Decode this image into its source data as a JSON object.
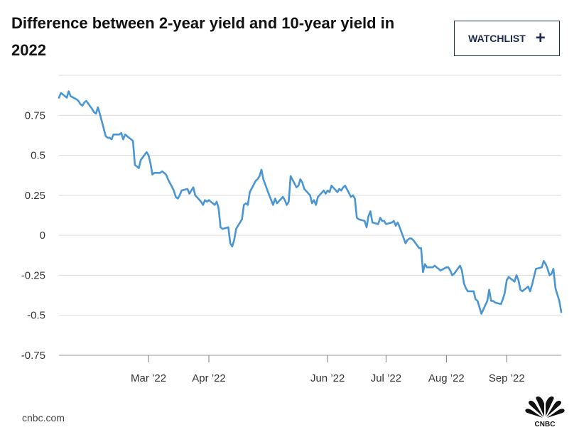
{
  "header": {
    "title": "Difference between 2-year yield and 10-year yield in 2022",
    "watchlist_label": "WATCHLIST",
    "watchlist_icon": "plus-icon"
  },
  "footer": {
    "source": "cnbc.com",
    "logo_text": "CNBC",
    "logo_icon": "peacock-logo"
  },
  "colors": {
    "line": "#4a96d4",
    "grid": "#d9d9d9",
    "button": "#1b2a4e"
  },
  "chart_data": {
    "type": "line",
    "title": "Difference between 2-year yield and 10-year yield in 2022",
    "xlabel": "",
    "ylabel": "",
    "ylim": [
      -0.75,
      1.0
    ],
    "yticks": [
      {
        "value": 0.75,
        "label": "0.75"
      },
      {
        "value": 0.5,
        "label": "0.5"
      },
      {
        "value": 0.25,
        "label": "0.25"
      },
      {
        "value": 0,
        "label": "0"
      },
      {
        "value": -0.25,
        "label": "-0.25"
      },
      {
        "value": -0.5,
        "label": "-0.5"
      },
      {
        "value": -0.75,
        "label": "-0.75"
      }
    ],
    "xlim": [
      "2022-01-14",
      "2022-09-29"
    ],
    "xticks": [
      {
        "date": "2022-03-01",
        "label": "Mar ’22"
      },
      {
        "date": "2022-04-01",
        "label": "Apr ’22"
      },
      {
        "date": "2022-06-01",
        "label": "Jun ’22"
      },
      {
        "date": "2022-07-01",
        "label": "Jul ’22"
      },
      {
        "date": "2022-08-01",
        "label": "Aug ’22"
      },
      {
        "date": "2022-09-01",
        "label": "Sep ’22"
      }
    ],
    "grid": true,
    "series": [
      {
        "points": [
          [
            "2022-01-14",
            0.86
          ],
          [
            "2022-01-15",
            0.89
          ],
          [
            "2022-01-18",
            0.86
          ],
          [
            "2022-01-19",
            0.9
          ],
          [
            "2022-01-20",
            0.87
          ],
          [
            "2022-01-23",
            0.85
          ],
          [
            "2022-01-24",
            0.84
          ],
          [
            "2022-01-25",
            0.82
          ],
          [
            "2022-01-26",
            0.81
          ],
          [
            "2022-01-27",
            0.83
          ],
          [
            "2022-01-28",
            0.84
          ],
          [
            "2022-01-31",
            0.79
          ],
          [
            "2022-02-01",
            0.77
          ],
          [
            "2022-02-02",
            0.76
          ],
          [
            "2022-02-03",
            0.8
          ],
          [
            "2022-02-04",
            0.76
          ],
          [
            "2022-02-07",
            0.62
          ],
          [
            "2022-02-08",
            0.61
          ],
          [
            "2022-02-09",
            0.61
          ],
          [
            "2022-02-10",
            0.6
          ],
          [
            "2022-02-11",
            0.63
          ],
          [
            "2022-02-14",
            0.63
          ],
          [
            "2022-02-15",
            0.64
          ],
          [
            "2022-02-16",
            0.6
          ],
          [
            "2022-02-17",
            0.63
          ],
          [
            "2022-02-18",
            0.62
          ],
          [
            "2022-02-21",
            0.59
          ],
          [
            "2022-02-22",
            0.44
          ],
          [
            "2022-02-23",
            0.43
          ],
          [
            "2022-02-24",
            0.42
          ],
          [
            "2022-02-25",
            0.47
          ],
          [
            "2022-02-28",
            0.52
          ],
          [
            "2022-03-01",
            0.5
          ],
          [
            "2022-03-02",
            0.45
          ],
          [
            "2022-03-03",
            0.38
          ],
          [
            "2022-03-04",
            0.39
          ],
          [
            "2022-03-07",
            0.39
          ],
          [
            "2022-03-08",
            0.4
          ],
          [
            "2022-03-09",
            0.39
          ],
          [
            "2022-03-10",
            0.38
          ],
          [
            "2022-03-11",
            0.35
          ],
          [
            "2022-03-14",
            0.28
          ],
          [
            "2022-03-15",
            0.24
          ],
          [
            "2022-03-16",
            0.23
          ],
          [
            "2022-03-17",
            0.25
          ],
          [
            "2022-03-18",
            0.28
          ],
          [
            "2022-03-21",
            0.29
          ],
          [
            "2022-03-22",
            0.26
          ],
          [
            "2022-03-23",
            0.28
          ],
          [
            "2022-03-24",
            0.3
          ],
          [
            "2022-03-25",
            0.25
          ],
          [
            "2022-03-28",
            0.21
          ],
          [
            "2022-03-29",
            0.19
          ],
          [
            "2022-03-30",
            0.22
          ],
          [
            "2022-03-31",
            0.21
          ],
          [
            "2022-04-01",
            0.22
          ],
          [
            "2022-04-04",
            0.19
          ],
          [
            "2022-04-05",
            0.21
          ],
          [
            "2022-04-06",
            0.17
          ],
          [
            "2022-04-07",
            0.05
          ],
          [
            "2022-04-08",
            0.04
          ],
          [
            "2022-04-11",
            0.05
          ],
          [
            "2022-04-12",
            -0.05
          ],
          [
            "2022-04-13",
            -0.07
          ],
          [
            "2022-04-14",
            -0.03
          ],
          [
            "2022-04-15",
            0.04
          ],
          [
            "2022-04-18",
            0.1
          ],
          [
            "2022-04-19",
            0.19
          ],
          [
            "2022-04-20",
            0.2
          ],
          [
            "2022-04-21",
            0.19
          ],
          [
            "2022-04-22",
            0.27
          ],
          [
            "2022-04-25",
            0.34
          ],
          [
            "2022-04-26",
            0.35
          ],
          [
            "2022-04-27",
            0.37
          ],
          [
            "2022-04-28",
            0.41
          ],
          [
            "2022-04-29",
            0.35
          ],
          [
            "2022-05-02",
            0.25
          ],
          [
            "2022-05-03",
            0.22
          ],
          [
            "2022-05-04",
            0.19
          ],
          [
            "2022-05-05",
            0.23
          ],
          [
            "2022-05-06",
            0.2
          ],
          [
            "2022-05-09",
            0.24
          ],
          [
            "2022-05-10",
            0.22
          ],
          [
            "2022-05-11",
            0.19
          ],
          [
            "2022-05-12",
            0.21
          ],
          [
            "2022-05-13",
            0.37
          ],
          [
            "2022-05-16",
            0.3
          ],
          [
            "2022-05-17",
            0.31
          ],
          [
            "2022-05-18",
            0.35
          ],
          [
            "2022-05-19",
            0.33
          ],
          [
            "2022-05-20",
            0.29
          ],
          [
            "2022-05-23",
            0.25
          ],
          [
            "2022-05-24",
            0.2
          ],
          [
            "2022-05-25",
            0.22
          ],
          [
            "2022-05-26",
            0.19
          ],
          [
            "2022-05-27",
            0.24
          ],
          [
            "2022-05-30",
            0.28
          ],
          [
            "2022-05-31",
            0.26
          ],
          [
            "2022-06-01",
            0.28
          ],
          [
            "2022-06-02",
            0.27
          ],
          [
            "2022-06-03",
            0.31
          ],
          [
            "2022-06-06",
            0.27
          ],
          [
            "2022-06-07",
            0.29
          ],
          [
            "2022-06-08",
            0.28
          ],
          [
            "2022-06-09",
            0.3
          ],
          [
            "2022-06-10",
            0.31
          ],
          [
            "2022-06-13",
            0.24
          ],
          [
            "2022-06-14",
            0.25
          ],
          [
            "2022-06-15",
            0.23
          ],
          [
            "2022-06-16",
            0.11
          ],
          [
            "2022-06-17",
            0.1
          ],
          [
            "2022-06-20",
            0.09
          ],
          [
            "2022-06-21",
            0.05
          ],
          [
            "2022-06-22",
            0.12
          ],
          [
            "2022-06-23",
            0.15
          ],
          [
            "2022-06-24",
            0.08
          ],
          [
            "2022-06-27",
            0.07
          ],
          [
            "2022-06-28",
            0.11
          ],
          [
            "2022-06-29",
            0.09
          ],
          [
            "2022-06-30",
            0.09
          ],
          [
            "2022-07-01",
            0.07
          ],
          [
            "2022-07-04",
            0.08
          ],
          [
            "2022-07-05",
            0.09
          ],
          [
            "2022-07-06",
            0.06
          ],
          [
            "2022-07-07",
            0.08
          ],
          [
            "2022-07-08",
            0.05
          ],
          [
            "2022-07-11",
            -0.05
          ],
          [
            "2022-07-12",
            -0.03
          ],
          [
            "2022-07-13",
            -0.02
          ],
          [
            "2022-07-14",
            -0.02
          ],
          [
            "2022-07-15",
            -0.03
          ],
          [
            "2022-07-18",
            -0.08
          ],
          [
            "2022-07-19",
            -0.08
          ],
          [
            "2022-07-20",
            -0.23
          ],
          [
            "2022-07-21",
            -0.18
          ],
          [
            "2022-07-22",
            -0.2
          ],
          [
            "2022-07-25",
            -0.2
          ],
          [
            "2022-07-26",
            -0.19
          ],
          [
            "2022-07-27",
            -0.2
          ],
          [
            "2022-07-28",
            -0.21
          ],
          [
            "2022-07-29",
            -0.22
          ],
          [
            "2022-08-01",
            -0.2
          ],
          [
            "2022-08-02",
            -0.2
          ],
          [
            "2022-08-03",
            -0.22
          ],
          [
            "2022-08-04",
            -0.25
          ],
          [
            "2022-08-05",
            -0.24
          ],
          [
            "2022-08-08",
            -0.19
          ],
          [
            "2022-08-09",
            -0.22
          ],
          [
            "2022-08-10",
            -0.3
          ],
          [
            "2022-08-11",
            -0.33
          ],
          [
            "2022-08-12",
            -0.35
          ],
          [
            "2022-08-15",
            -0.35
          ],
          [
            "2022-08-16",
            -0.4
          ],
          [
            "2022-08-17",
            -0.41
          ],
          [
            "2022-08-18",
            -0.45
          ],
          [
            "2022-08-19",
            -0.49
          ],
          [
            "2022-08-22",
            -0.41
          ],
          [
            "2022-08-23",
            -0.34
          ],
          [
            "2022-08-24",
            -0.41
          ],
          [
            "2022-08-25",
            -0.41
          ],
          [
            "2022-08-26",
            -0.42
          ],
          [
            "2022-08-29",
            -0.43
          ],
          [
            "2022-08-30",
            -0.4
          ],
          [
            "2022-08-31",
            -0.36
          ],
          [
            "2022-09-01",
            -0.28
          ],
          [
            "2022-09-02",
            -0.26
          ],
          [
            "2022-09-05",
            -0.29
          ],
          [
            "2022-09-06",
            -0.25
          ],
          [
            "2022-09-07",
            -0.28
          ],
          [
            "2022-09-08",
            -0.34
          ],
          [
            "2022-09-09",
            -0.35
          ],
          [
            "2022-09-12",
            -0.32
          ],
          [
            "2022-09-13",
            -0.35
          ],
          [
            "2022-09-14",
            -0.31
          ],
          [
            "2022-09-15",
            -0.26
          ],
          [
            "2022-09-16",
            -0.21
          ],
          [
            "2022-09-19",
            -0.2
          ],
          [
            "2022-09-20",
            -0.16
          ],
          [
            "2022-09-21",
            -0.18
          ],
          [
            "2022-09-22",
            -0.21
          ],
          [
            "2022-09-23",
            -0.25
          ],
          [
            "2022-09-24",
            -0.24
          ],
          [
            "2022-09-25",
            -0.21
          ],
          [
            "2022-09-26",
            -0.33
          ],
          [
            "2022-09-27",
            -0.37
          ],
          [
            "2022-09-28",
            -0.41
          ],
          [
            "2022-09-28",
            -0.41
          ],
          [
            "2022-09-29",
            -0.48
          ]
        ]
      }
    ]
  }
}
